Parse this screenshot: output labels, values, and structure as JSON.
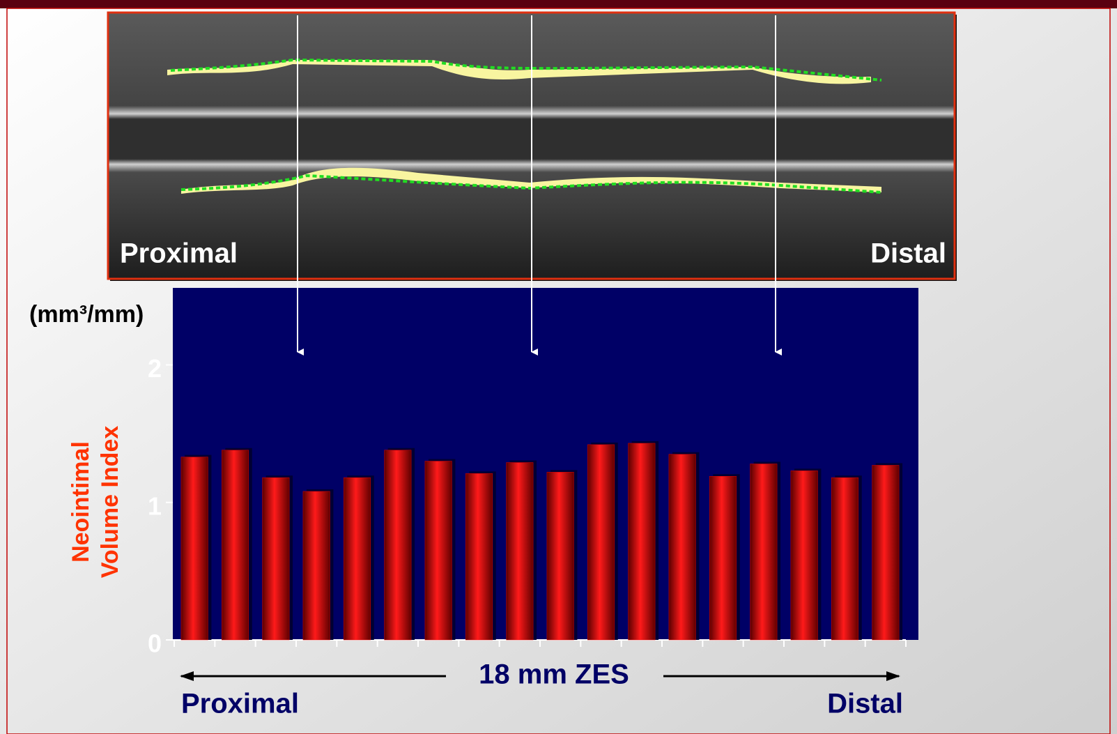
{
  "chart_data": {
    "type": "bar",
    "image_labels": [
      "Proximal",
      "Distal"
    ],
    "y_unit": "(mm³/mm)",
    "y_label": [
      "Neointimal",
      "Volume Index"
    ],
    "x_label": "18 mm ZES",
    "x_ends": [
      "Proximal",
      "Distal"
    ],
    "categories": [
      null,
      null,
      null,
      null,
      null,
      null,
      null,
      null,
      null,
      null,
      null,
      null,
      null,
      null,
      null,
      null,
      null,
      null
    ],
    "values": [
      1.33,
      1.38,
      1.18,
      1.08,
      1.18,
      1.38,
      1.3,
      1.21,
      1.29,
      1.22,
      1.42,
      1.43,
      1.35,
      1.19,
      1.28,
      1.23,
      1.18,
      1.27
    ],
    "color": "#e00000",
    "ylim": [
      0,
      2.56
    ],
    "yticks": [
      0,
      1,
      2
    ]
  }
}
